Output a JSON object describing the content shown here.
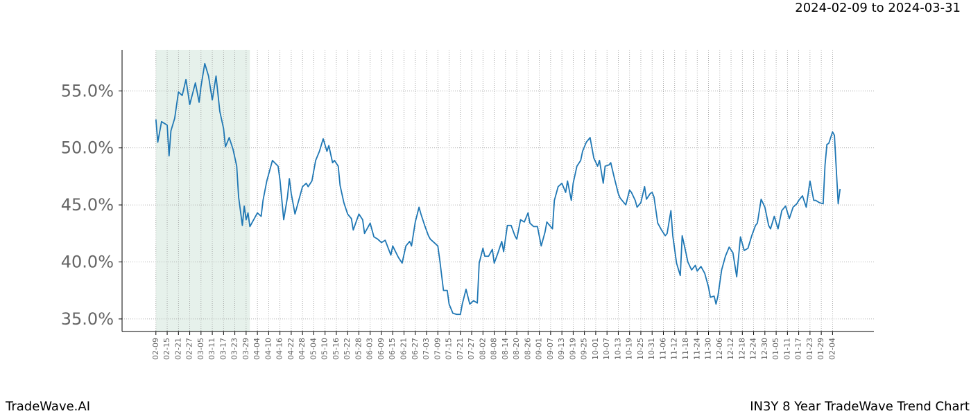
{
  "chart_data": {
    "type": "line",
    "title": "IN3Y 8 Year TradeWave Trend Chart",
    "subtitle": "2024-02-09 to 2024-03-31",
    "brand": "TradeWave.AI",
    "highlight": {
      "from": "02-09",
      "to": "03-31",
      "color": "#2e8b57"
    },
    "xlim": [
      "01-22",
      "02-26"
    ],
    "xticks": [
      "02-09",
      "02-15",
      "02-21",
      "02-27",
      "03-05",
      "03-11",
      "03-17",
      "03-23",
      "03-29",
      "04-04",
      "04-10",
      "04-16",
      "04-22",
      "04-28",
      "05-04",
      "05-10",
      "05-16",
      "05-22",
      "05-28",
      "06-03",
      "06-09",
      "06-15",
      "06-21",
      "06-27",
      "07-03",
      "07-09",
      "07-15",
      "07-21",
      "07-27",
      "08-02",
      "08-08",
      "08-14",
      "08-20",
      "08-26",
      "09-01",
      "09-07",
      "09-13",
      "09-19",
      "09-25",
      "10-01",
      "10-07",
      "10-13",
      "10-19",
      "10-25",
      "10-31",
      "11-06",
      "11-12",
      "11-18",
      "11-24",
      "11-30",
      "12-06",
      "12-12",
      "12-18",
      "12-24",
      "12-30",
      "01-05",
      "01-11",
      "01-17",
      "01-23",
      "01-29",
      "02-04"
    ],
    "ylim": [
      33.9,
      58.6
    ],
    "yticks": [
      {
        "value": 35,
        "label": "35.0%"
      },
      {
        "value": 40,
        "label": "40.0%"
      },
      {
        "value": 45,
        "label": "45.0%"
      },
      {
        "value": 50,
        "label": "50.0%"
      },
      {
        "value": 55,
        "label": "55.0%"
      }
    ],
    "grid": true,
    "series": [
      {
        "color": "#1f77b4",
        "x": [
          "02-09",
          "02-10",
          "02-12",
          "02-15",
          "02-16",
          "02-17",
          "02-19",
          "02-21",
          "02-23",
          "02-25",
          "02-27",
          "03-02",
          "03-04",
          "03-05",
          "03-07",
          "03-09",
          "03-11",
          "03-13",
          "03-15",
          "03-17",
          "03-18",
          "03-20",
          "03-22",
          "03-24",
          "03-25",
          "03-27",
          "03-28",
          "03-29",
          "03-30",
          "03-31",
          "04-04",
          "04-06",
          "04-07",
          "04-09",
          "04-10",
          "04-12",
          "04-15",
          "04-16",
          "04-18",
          "04-20",
          "04-21",
          "04-22",
          "04-24",
          "04-26",
          "04-28",
          "04-30",
          "05-01",
          "05-03",
          "05-05",
          "05-07",
          "05-09",
          "05-11",
          "05-12",
          "05-14",
          "05-15",
          "05-17",
          "05-18",
          "05-20",
          "05-22",
          "05-24",
          "05-25",
          "05-28",
          "05-30",
          "05-31",
          "06-03",
          "06-05",
          "06-07",
          "06-09",
          "06-11",
          "06-14",
          "06-15",
          "06-18",
          "06-20",
          "06-22",
          "06-24",
          "06-25",
          "06-27",
          "06-29",
          "06-30",
          "07-02",
          "07-04",
          "07-05",
          "07-07",
          "07-09",
          "07-10",
          "07-12",
          "07-14",
          "07-15",
          "07-17",
          "07-19",
          "07-21",
          "07-22",
          "07-24",
          "07-26",
          "07-28",
          "07-30",
          "07-31",
          "08-02",
          "08-03",
          "08-05",
          "08-07",
          "08-08",
          "08-10",
          "08-12",
          "08-13",
          "08-15",
          "08-17",
          "08-19",
          "08-20",
          "08-22",
          "08-24",
          "08-26",
          "08-27",
          "08-29",
          "08-31",
          "09-02",
          "09-04",
          "09-05",
          "09-08",
          "09-09",
          "09-11",
          "09-13",
          "09-15",
          "09-16",
          "09-18",
          "09-19",
          "09-21",
          "09-23",
          "09-24",
          "09-26",
          "09-28",
          "09-30",
          "10-02",
          "10-03",
          "10-05",
          "10-06",
          "10-08",
          "10-09",
          "10-11",
          "10-13",
          "10-14",
          "10-16",
          "10-17",
          "10-19",
          "10-20",
          "10-22",
          "10-23",
          "10-25",
          "10-27",
          "10-28",
          "10-30",
          "10-31",
          "11-01",
          "11-03",
          "11-05",
          "11-07",
          "11-08",
          "11-10",
          "11-11",
          "11-13",
          "11-15",
          "11-16",
          "11-18",
          "11-19",
          "11-21",
          "11-23",
          "11-24",
          "11-26",
          "11-28",
          "11-30",
          "12-01",
          "12-03",
          "12-04",
          "12-05",
          "12-07",
          "12-09",
          "12-11",
          "12-13",
          "12-15",
          "12-17",
          "12-19",
          "12-21",
          "12-23",
          "12-25",
          "12-26",
          "12-28",
          "12-30",
          "01-01",
          "01-02",
          "01-04",
          "01-06",
          "01-08",
          "01-10",
          "01-12",
          "01-14",
          "01-16",
          "01-17",
          "01-19",
          "01-21",
          "01-23",
          "01-25",
          "01-26",
          "01-28",
          "01-30",
          "01-31",
          "02-01",
          "02-02",
          "02-04",
          "02-05",
          "02-07",
          "02-08"
        ],
        "values": [
          52.5,
          50.5,
          52.3,
          52.0,
          49.3,
          51.5,
          52.6,
          54.9,
          54.6,
          56.0,
          53.8,
          55.7,
          54.0,
          55.4,
          57.4,
          56.3,
          54.2,
          56.3,
          53.2,
          51.7,
          50.1,
          50.9,
          49.9,
          48.4,
          45.7,
          43.2,
          44.9,
          43.7,
          44.3,
          43.1,
          44.3,
          44.0,
          45.4,
          47.1,
          47.7,
          48.9,
          48.4,
          47.2,
          43.7,
          45.7,
          47.3,
          46.0,
          44.2,
          45.4,
          46.6,
          46.9,
          46.6,
          47.1,
          48.9,
          49.7,
          50.8,
          49.7,
          50.2,
          48.7,
          48.9,
          48.4,
          46.7,
          45.2,
          44.2,
          43.8,
          42.8,
          44.2,
          43.7,
          42.5,
          43.4,
          42.2,
          42.0,
          41.7,
          41.9,
          40.6,
          41.4,
          40.4,
          39.9,
          41.4,
          41.8,
          41.4,
          43.5,
          44.8,
          44.2,
          43.2,
          42.3,
          42.0,
          41.7,
          41.4,
          40.2,
          37.5,
          37.5,
          36.3,
          35.5,
          35.4,
          35.4,
          36.3,
          37.6,
          36.3,
          36.6,
          36.4,
          39.9,
          41.2,
          40.5,
          40.5,
          41.1,
          39.9,
          40.8,
          41.8,
          40.9,
          43.2,
          43.2,
          42.3,
          42.0,
          43.7,
          43.5,
          44.3,
          43.4,
          43.1,
          43.1,
          41.4,
          42.6,
          43.5,
          42.9,
          45.4,
          46.6,
          46.9,
          46.1,
          47.1,
          45.4,
          46.9,
          48.4,
          48.9,
          49.7,
          50.5,
          50.9,
          49.1,
          48.4,
          48.9,
          46.9,
          48.4,
          48.5,
          48.7,
          47.3,
          46.0,
          45.6,
          45.2,
          45.0,
          46.3,
          46.1,
          45.4,
          44.8,
          45.2,
          46.6,
          45.5,
          46.0,
          46.1,
          45.7,
          43.4,
          42.8,
          42.3,
          42.5,
          44.5,
          42.3,
          39.9,
          38.8,
          42.3,
          40.8,
          40.0,
          39.3,
          39.7,
          39.2,
          39.6,
          39.0,
          37.8,
          36.9,
          37.0,
          36.3,
          37.0,
          39.3,
          40.5,
          41.3,
          40.8,
          38.7,
          42.2,
          41.0,
          41.2,
          42.3,
          43.2,
          43.4,
          45.5,
          44.8,
          43.2,
          42.9,
          44.0,
          42.9,
          44.5,
          44.9,
          43.8,
          44.8,
          45.1,
          45.4,
          45.8,
          44.8,
          47.1,
          45.4,
          45.4,
          45.2,
          45.1,
          48.5,
          50.3,
          50.4,
          51.4,
          51.1,
          45.1,
          46.4
        ]
      }
    ]
  }
}
